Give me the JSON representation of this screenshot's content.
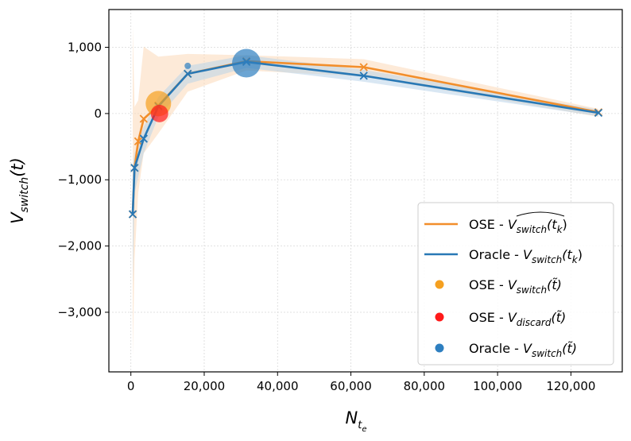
{
  "chart_data": {
    "type": "line",
    "title": "",
    "xlabel": "N",
    "xlabel_sub": "t",
    "xlabel_subsub": "e",
    "ylabel": "V",
    "ylabel_sub": "switch",
    "ylabel_arg": "(t)",
    "xlim": [
      -6000,
      134000
    ],
    "ylim": [
      -3900,
      1570
    ],
    "x_ticks": [
      0,
      20000,
      40000,
      60000,
      80000,
      100000,
      120000
    ],
    "x_tick_labels": [
      "0",
      "20,000",
      "40,000",
      "60,000",
      "80,000",
      "100,000",
      "120,000"
    ],
    "y_ticks": [
      1000,
      0,
      -1000,
      -2000,
      -3000
    ],
    "y_tick_labels": [
      "1,000",
      "0",
      "−1,000",
      "−2,000",
      "−3,000"
    ],
    "grid": true,
    "legend_position": "lower-right",
    "series": [
      {
        "name": "OSE - V_switch-hat(t_k)",
        "legend_prefix": "OSE - ",
        "legend_math": "V",
        "legend_sub": "switch",
        "legend_arg": "(t",
        "legend_arg_sub": "k",
        "legend_close": ")",
        "color": "#f28e2b",
        "x": [
          500,
          1000,
          2000,
          3500,
          7500,
          15500,
          31500,
          63500,
          127500
        ],
        "y": [
          -1520,
          -820,
          -420,
          -80,
          120,
          600,
          790,
          700,
          20
        ],
        "band_upper": [
          1320,
          100,
          200,
          1010,
          860,
          900,
          880,
          820,
          70
        ],
        "band_lower": [
          -3680,
          -2200,
          -1200,
          -600,
          -300,
          330,
          650,
          560,
          -50
        ]
      },
      {
        "name": "Oracle - V_switch(t_k)",
        "legend_prefix": "Oracle - ",
        "legend_math": "V",
        "legend_sub": "switch",
        "legend_arg": "(t",
        "legend_arg_sub": "k",
        "legend_close": ")",
        "color": "#2878b5",
        "x": [
          500,
          1000,
          3500,
          7500,
          15500,
          31500,
          63500,
          127500
        ],
        "y": [
          -1520,
          -820,
          -380,
          110,
          600,
          780,
          570,
          10
        ],
        "band_upper": [
          -800,
          -600,
          -200,
          250,
          720,
          880,
          660,
          60
        ],
        "band_lower": [
          -2600,
          -1200,
          -600,
          -50,
          450,
          690,
          480,
          -40
        ]
      }
    ],
    "points": [
      {
        "name": "OSE - V_switch(t~)",
        "legend_prefix": "OSE - ",
        "legend_math": "V",
        "legend_sub": "switch",
        "legend_arg": "(t̃)",
        "color": "#f5a020",
        "x": 7500,
        "y": 150,
        "size": 16
      },
      {
        "name": "OSE - V_discard(t~)",
        "legend_prefix": "OSE - ",
        "legend_math": "V",
        "legend_sub": "discard",
        "legend_arg": "(t̃)",
        "color": "#ff1a1a",
        "x": 7800,
        "y": 0,
        "size": 11
      },
      {
        "name": "Oracle - V_switch(t~)",
        "legend_prefix": "Oracle - ",
        "legend_math": "V",
        "legend_sub": "switch",
        "legend_arg": "(t̃)",
        "color": "#2e7fc0",
        "x": 31500,
        "y": 760,
        "size": 18
      },
      {
        "name": "Oracle - V_switch(t~) small",
        "color": "#2e7fc0",
        "x": 15500,
        "y": 720,
        "size": 4
      }
    ]
  }
}
